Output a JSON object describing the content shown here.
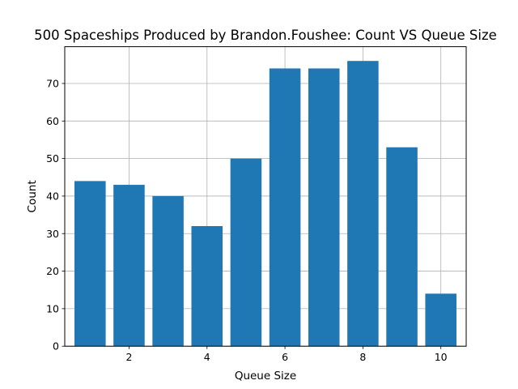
{
  "chart_data": {
    "type": "bar",
    "title": "500 Spaceships Produced by Brandon.Foushee: Count VS Queue Size",
    "xlabel": "Queue Size",
    "ylabel": "Count",
    "x": [
      1,
      2,
      3,
      4,
      5,
      6,
      7,
      8,
      9,
      10
    ],
    "values": [
      44,
      43,
      40,
      32,
      50,
      74,
      74,
      76,
      53,
      14
    ],
    "xlim": [
      0.35,
      10.65
    ],
    "ylim": [
      0,
      79.8
    ],
    "xticks": [
      2,
      4,
      6,
      8,
      10
    ],
    "yticks": [
      0,
      10,
      20,
      30,
      40,
      50,
      60,
      70
    ],
    "grid": true,
    "bar_color": "#1f77b4"
  }
}
